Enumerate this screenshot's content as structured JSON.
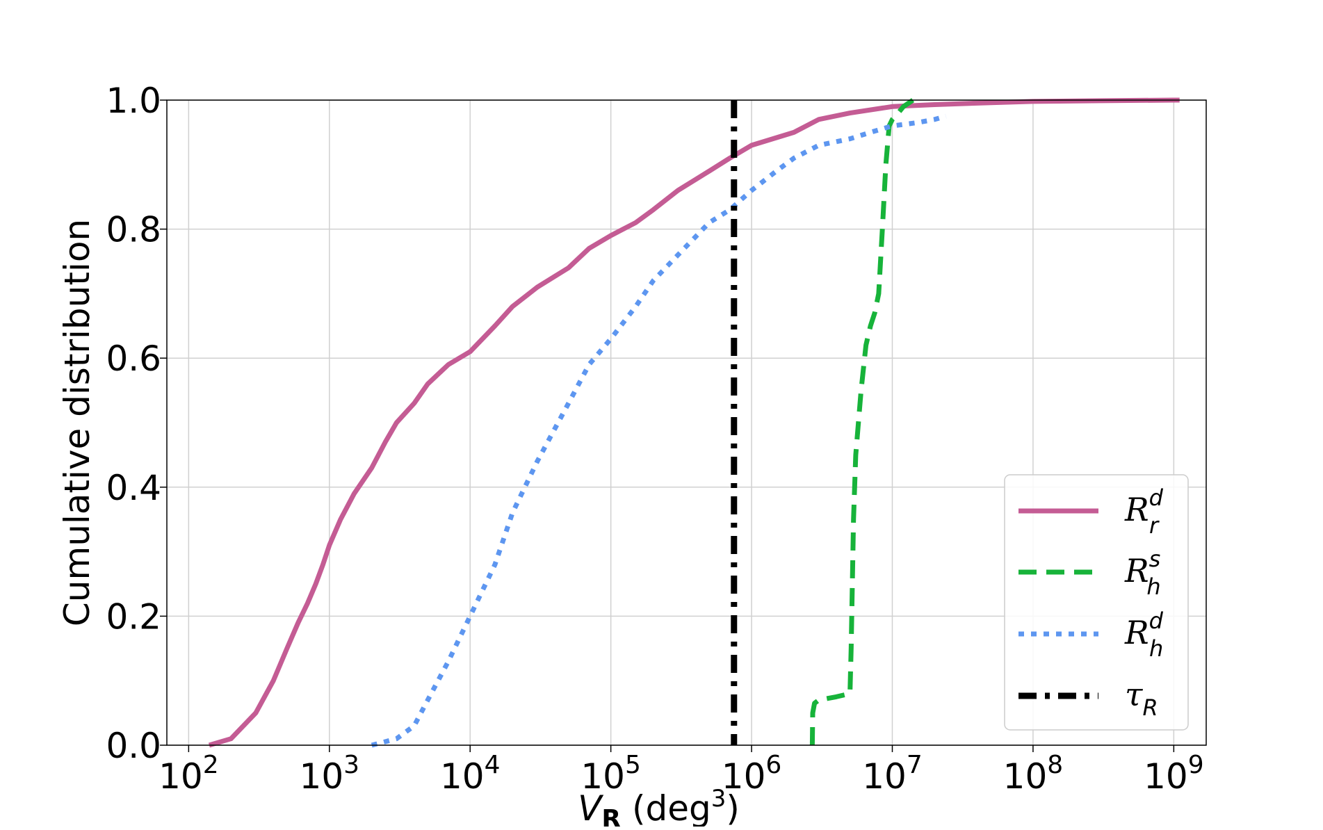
{
  "chart_data": {
    "type": "line",
    "title": "",
    "xlabel_main": "V",
    "xlabel_sub": "R",
    "xlabel_unit_prefix": " (deg",
    "xlabel_unit_exp": "3",
    "xlabel_unit_suffix": ")",
    "ylabel": "Cumulative distribution",
    "x_scale": "log",
    "xlim": [
      70,
      1700000000
    ],
    "ylim": [
      0.0,
      1.0
    ],
    "grid": true,
    "legend_position": "bottom-right",
    "x_ticks": [
      {
        "value": 100,
        "base": "10",
        "exp": "2"
      },
      {
        "value": 1000,
        "base": "10",
        "exp": "3"
      },
      {
        "value": 10000,
        "base": "10",
        "exp": "4"
      },
      {
        "value": 100000,
        "base": "10",
        "exp": "5"
      },
      {
        "value": 1000000,
        "base": "10",
        "exp": "6"
      },
      {
        "value": 10000000,
        "base": "10",
        "exp": "7"
      },
      {
        "value": 100000000,
        "base": "10",
        "exp": "8"
      },
      {
        "value": 1000000000,
        "base": "10",
        "exp": "9"
      }
    ],
    "y_ticks": [
      {
        "value": 0.0,
        "label": "0.0"
      },
      {
        "value": 0.2,
        "label": "0.2"
      },
      {
        "value": 0.4,
        "label": "0.4"
      },
      {
        "value": 0.6,
        "label": "0.6"
      },
      {
        "value": 0.8,
        "label": "0.8"
      },
      {
        "value": 1.0,
        "label": "1.0"
      }
    ],
    "series": [
      {
        "name": "R",
        "name_sup": "d",
        "name_sub": "r",
        "color": "#c45c94",
        "style": "solid",
        "x": [
          140,
          200,
          300,
          400,
          500,
          600,
          700,
          800,
          900,
          1000,
          1200,
          1500,
          2000,
          2500,
          3000,
          4000,
          5000,
          7000,
          10000,
          15000,
          20000,
          30000,
          50000,
          70000,
          100000,
          150000,
          200000,
          300000,
          500000,
          700000,
          1000000,
          2000000,
          3000000,
          5000000,
          10000000,
          20000000,
          50000000,
          100000000,
          300000000,
          1000000000,
          1100000000
        ],
        "y": [
          0.0,
          0.01,
          0.05,
          0.1,
          0.15,
          0.19,
          0.22,
          0.25,
          0.28,
          0.31,
          0.35,
          0.39,
          0.43,
          0.47,
          0.5,
          0.53,
          0.56,
          0.59,
          0.61,
          0.65,
          0.68,
          0.71,
          0.74,
          0.77,
          0.79,
          0.81,
          0.83,
          0.86,
          0.89,
          0.91,
          0.93,
          0.95,
          0.97,
          0.98,
          0.99,
          0.993,
          0.996,
          0.998,
          0.999,
          1.0,
          1.0
        ]
      },
      {
        "name": "R",
        "name_sup": "s",
        "name_sub": "h",
        "color": "#17b33a",
        "style": "dashed",
        "x": [
          2700000,
          2720000,
          2800000,
          3000000,
          4000000,
          5000000,
          5100000,
          5200000,
          5300000,
          5500000,
          6000000,
          6500000,
          7000000,
          7500000,
          8000000,
          8500000,
          9000000,
          9500000,
          10000000,
          11000000,
          12000000,
          13000000,
          14000000
        ],
        "y": [
          0.0,
          0.05,
          0.065,
          0.07,
          0.075,
          0.08,
          0.15,
          0.25,
          0.35,
          0.45,
          0.55,
          0.62,
          0.65,
          0.67,
          0.7,
          0.8,
          0.9,
          0.96,
          0.97,
          0.98,
          0.99,
          0.995,
          1.0
        ]
      },
      {
        "name": "R",
        "name_sup": "d",
        "name_sub": "h",
        "color": "#5d96f0",
        "style": "dotted",
        "x": [
          2000,
          3000,
          4000,
          5000,
          7000,
          10000,
          15000,
          20000,
          30000,
          50000,
          70000,
          100000,
          150000,
          200000,
          300000,
          500000,
          700000,
          1000000,
          1500000,
          2000000,
          3000000,
          5000000,
          7000000,
          10000000,
          15000000,
          20000000,
          24000000
        ],
        "y": [
          0.0,
          0.01,
          0.03,
          0.07,
          0.13,
          0.2,
          0.28,
          0.36,
          0.44,
          0.53,
          0.59,
          0.63,
          0.68,
          0.72,
          0.76,
          0.81,
          0.83,
          0.86,
          0.89,
          0.91,
          0.93,
          0.94,
          0.95,
          0.96,
          0.965,
          0.97,
          0.975
        ]
      }
    ],
    "vline": {
      "name": "τ",
      "name_sub": "R",
      "x": 750000,
      "color": "#000000",
      "style": "dashdot"
    }
  }
}
